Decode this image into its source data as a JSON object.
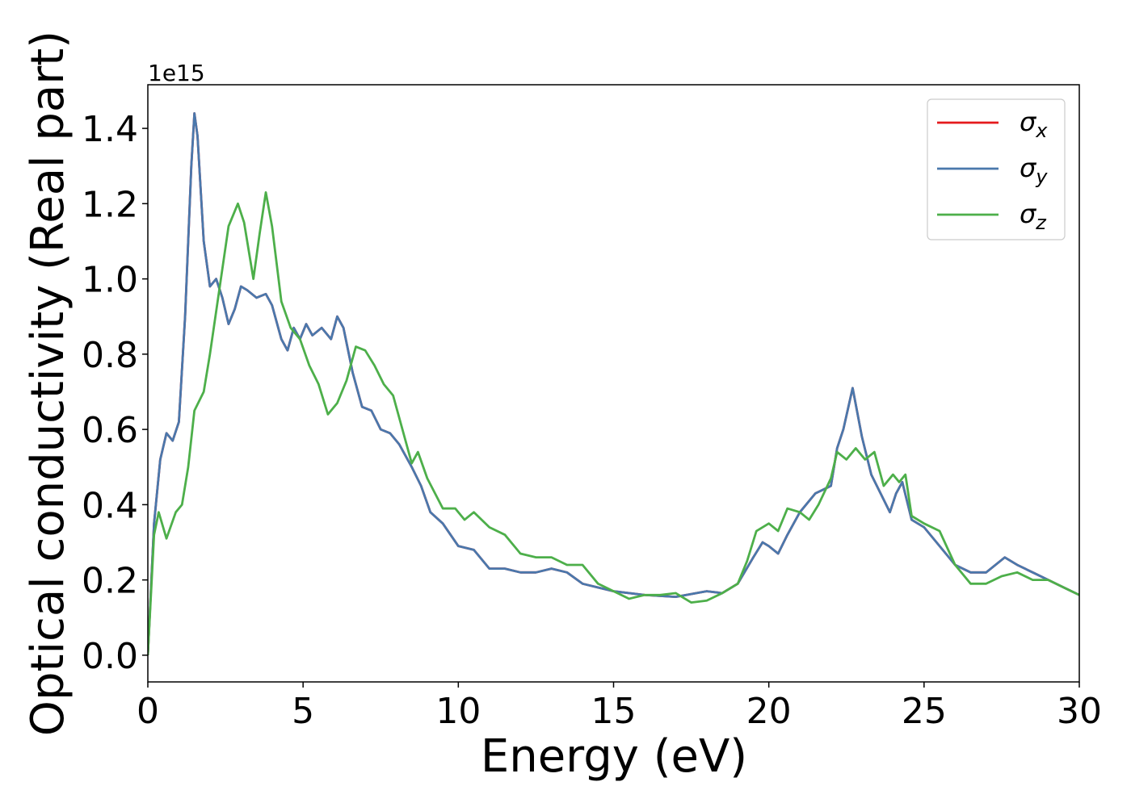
{
  "chart_data": {
    "type": "line",
    "xlabel": "Energy (eV)",
    "ylabel": "Optical conductivity (Real part)",
    "y_offset_label": "1e15",
    "xlim": [
      0,
      30
    ],
    "ylim": [
      -0.071,
      1.516
    ],
    "xticks": [
      0,
      5,
      10,
      15,
      20,
      25,
      30
    ],
    "yticks": [
      {
        "value": 0,
        "label": "0.0"
      },
      0.2,
      0.4,
      0.6,
      0.8,
      {
        "value": 1,
        "label": "1.0"
      },
      1.2,
      1.4
    ],
    "grid": false,
    "legend": "upper right",
    "series": [
      {
        "name": "σx",
        "color": "#e41a1c",
        "x": [
          0,
          0.2,
          0.4,
          0.6,
          0.8,
          1.0,
          1.2,
          1.4,
          1.5,
          1.6,
          1.8,
          2.0,
          2.2,
          2.4,
          2.6,
          2.8,
          3.0,
          3.2,
          3.5,
          3.8,
          4.0,
          4.3,
          4.5,
          4.7,
          4.9,
          5.1,
          5.3,
          5.6,
          5.9,
          6.1,
          6.3,
          6.6,
          6.9,
          7.2,
          7.5,
          7.8,
          8.1,
          8.5,
          8.8,
          9.1,
          9.5,
          10.0,
          10.5,
          11.0,
          11.5,
          12.0,
          12.5,
          13.0,
          13.5,
          14.0,
          14.5,
          15,
          16,
          17,
          18,
          18.5,
          19,
          19.5,
          19.8,
          20.0,
          20.3,
          20.6,
          21.0,
          21.5,
          22,
          22.2,
          22.4,
          22.7,
          23.0,
          23.3,
          23.6,
          23.9,
          24.1,
          24.3,
          24.6,
          25,
          25.5,
          26,
          26.5,
          27,
          27.6,
          28,
          28.5,
          29,
          29.5,
          30
        ],
        "values": [
          0,
          0.35,
          0.52,
          0.59,
          0.57,
          0.62,
          0.9,
          1.3,
          1.44,
          1.38,
          1.1,
          0.98,
          1.0,
          0.95,
          0.88,
          0.92,
          0.98,
          0.97,
          0.95,
          0.96,
          0.93,
          0.84,
          0.81,
          0.87,
          0.84,
          0.88,
          0.85,
          0.87,
          0.84,
          0.9,
          0.87,
          0.75,
          0.66,
          0.65,
          0.6,
          0.59,
          0.56,
          0.5,
          0.45,
          0.38,
          0.35,
          0.29,
          0.28,
          0.23,
          0.23,
          0.22,
          0.22,
          0.23,
          0.22,
          0.19,
          0.18,
          0.17,
          0.16,
          0.155,
          0.17,
          0.165,
          0.19,
          0.26,
          0.3,
          0.29,
          0.27,
          0.32,
          0.38,
          0.43,
          0.45,
          0.55,
          0.6,
          0.71,
          0.58,
          0.48,
          0.43,
          0.38,
          0.43,
          0.46,
          0.36,
          0.34,
          0.29,
          0.24,
          0.22,
          0.22,
          0.26,
          0.24,
          0.22,
          0.2,
          0.18,
          0.16
        ]
      },
      {
        "name": "σy",
        "color": "#4a78ac",
        "x": [
          0,
          0.2,
          0.4,
          0.6,
          0.8,
          1.0,
          1.2,
          1.4,
          1.5,
          1.6,
          1.8,
          2.0,
          2.2,
          2.4,
          2.6,
          2.8,
          3.0,
          3.2,
          3.5,
          3.8,
          4.0,
          4.3,
          4.5,
          4.7,
          4.9,
          5.1,
          5.3,
          5.6,
          5.9,
          6.1,
          6.3,
          6.6,
          6.9,
          7.2,
          7.5,
          7.8,
          8.1,
          8.5,
          8.8,
          9.1,
          9.5,
          10.0,
          10.5,
          11.0,
          11.5,
          12.0,
          12.5,
          13.0,
          13.5,
          14.0,
          14.5,
          15,
          16,
          17,
          18,
          18.5,
          19,
          19.5,
          19.8,
          20.0,
          20.3,
          20.6,
          21.0,
          21.5,
          22,
          22.2,
          22.4,
          22.7,
          23.0,
          23.3,
          23.6,
          23.9,
          24.1,
          24.3,
          24.6,
          25,
          25.5,
          26,
          26.5,
          27,
          27.6,
          28,
          28.5,
          29,
          29.5,
          30
        ],
        "values": [
          0,
          0.35,
          0.52,
          0.59,
          0.57,
          0.62,
          0.9,
          1.3,
          1.44,
          1.38,
          1.1,
          0.98,
          1.0,
          0.95,
          0.88,
          0.92,
          0.98,
          0.97,
          0.95,
          0.96,
          0.93,
          0.84,
          0.81,
          0.87,
          0.84,
          0.88,
          0.85,
          0.87,
          0.84,
          0.9,
          0.87,
          0.75,
          0.66,
          0.65,
          0.6,
          0.59,
          0.56,
          0.5,
          0.45,
          0.38,
          0.35,
          0.29,
          0.28,
          0.23,
          0.23,
          0.22,
          0.22,
          0.23,
          0.22,
          0.19,
          0.18,
          0.17,
          0.16,
          0.155,
          0.17,
          0.165,
          0.19,
          0.26,
          0.3,
          0.29,
          0.27,
          0.32,
          0.38,
          0.43,
          0.45,
          0.55,
          0.6,
          0.71,
          0.58,
          0.48,
          0.43,
          0.38,
          0.43,
          0.46,
          0.36,
          0.34,
          0.29,
          0.24,
          0.22,
          0.22,
          0.26,
          0.24,
          0.22,
          0.2,
          0.18,
          0.16
        ]
      },
      {
        "name": "σz",
        "color": "#4daf4a",
        "x": [
          0,
          0.2,
          0.35,
          0.6,
          0.9,
          1.1,
          1.3,
          1.5,
          1.8,
          2.0,
          2.3,
          2.6,
          2.9,
          3.1,
          3.4,
          3.6,
          3.8,
          4.0,
          4.3,
          4.6,
          4.9,
          5.2,
          5.5,
          5.8,
          6.1,
          6.4,
          6.7,
          7.0,
          7.3,
          7.6,
          7.9,
          8.2,
          8.5,
          8.7,
          9.0,
          9.5,
          9.9,
          10.2,
          10.5,
          11.0,
          11.5,
          12.0,
          12.5,
          13.0,
          13.5,
          14.0,
          14.5,
          15,
          15.5,
          16,
          16.5,
          17,
          17.5,
          18,
          18.5,
          19,
          19.3,
          19.6,
          20.0,
          20.3,
          20.6,
          21.0,
          21.3,
          21.6,
          22.0,
          22.2,
          22.5,
          22.8,
          23.1,
          23.4,
          23.7,
          24.0,
          24.2,
          24.4,
          24.6,
          25,
          25.5,
          26,
          26.5,
          27,
          27.5,
          28,
          28.5,
          29,
          29.5,
          30
        ],
        "values": [
          0,
          0.32,
          0.38,
          0.31,
          0.38,
          0.4,
          0.5,
          0.65,
          0.7,
          0.8,
          0.97,
          1.14,
          1.2,
          1.15,
          1.0,
          1.12,
          1.23,
          1.14,
          0.94,
          0.87,
          0.84,
          0.77,
          0.72,
          0.64,
          0.67,
          0.73,
          0.82,
          0.81,
          0.77,
          0.72,
          0.69,
          0.6,
          0.51,
          0.54,
          0.47,
          0.39,
          0.39,
          0.36,
          0.38,
          0.34,
          0.32,
          0.27,
          0.26,
          0.26,
          0.24,
          0.24,
          0.19,
          0.17,
          0.15,
          0.16,
          0.16,
          0.165,
          0.14,
          0.145,
          0.165,
          0.19,
          0.25,
          0.33,
          0.35,
          0.33,
          0.39,
          0.38,
          0.36,
          0.4,
          0.47,
          0.54,
          0.52,
          0.55,
          0.52,
          0.54,
          0.45,
          0.48,
          0.46,
          0.48,
          0.37,
          0.35,
          0.33,
          0.24,
          0.19,
          0.19,
          0.21,
          0.22,
          0.2,
          0.2,
          0.18,
          0.16
        ]
      }
    ]
  }
}
